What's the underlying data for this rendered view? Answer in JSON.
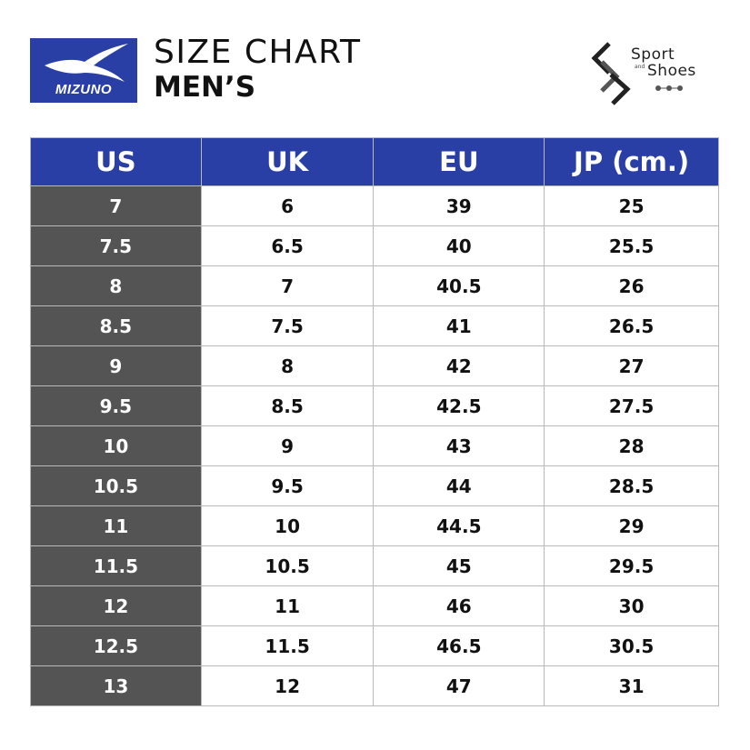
{
  "brand": {
    "logo_text": "MIZUNO",
    "color": "#2a3fa6"
  },
  "title": {
    "line1": "SIZE CHART",
    "line2": "MEN’S"
  },
  "shop": {
    "line1": "Sport",
    "line_and": "and",
    "line2": "Shoes"
  },
  "table": {
    "headers": [
      "US",
      "UK",
      "EU",
      "JP (cm.)"
    ],
    "header_color": "#2a3fa6",
    "first_column_color": "#545454",
    "rows": [
      [
        "7",
        "6",
        "39",
        "25"
      ],
      [
        "7.5",
        "6.5",
        "40",
        "25.5"
      ],
      [
        "8",
        "7",
        "40.5",
        "26"
      ],
      [
        "8.5",
        "7.5",
        "41",
        "26.5"
      ],
      [
        "9",
        "8",
        "42",
        "27"
      ],
      [
        "9.5",
        "8.5",
        "42.5",
        "27.5"
      ],
      [
        "10",
        "9",
        "43",
        "28"
      ],
      [
        "10.5",
        "9.5",
        "44",
        "28.5"
      ],
      [
        "11",
        "10",
        "44.5",
        "29"
      ],
      [
        "11.5",
        "10.5",
        "45",
        "29.5"
      ],
      [
        "12",
        "11",
        "46",
        "30"
      ],
      [
        "12.5",
        "11.5",
        "46.5",
        "30.5"
      ],
      [
        "13",
        "12",
        "47",
        "31"
      ]
    ]
  }
}
